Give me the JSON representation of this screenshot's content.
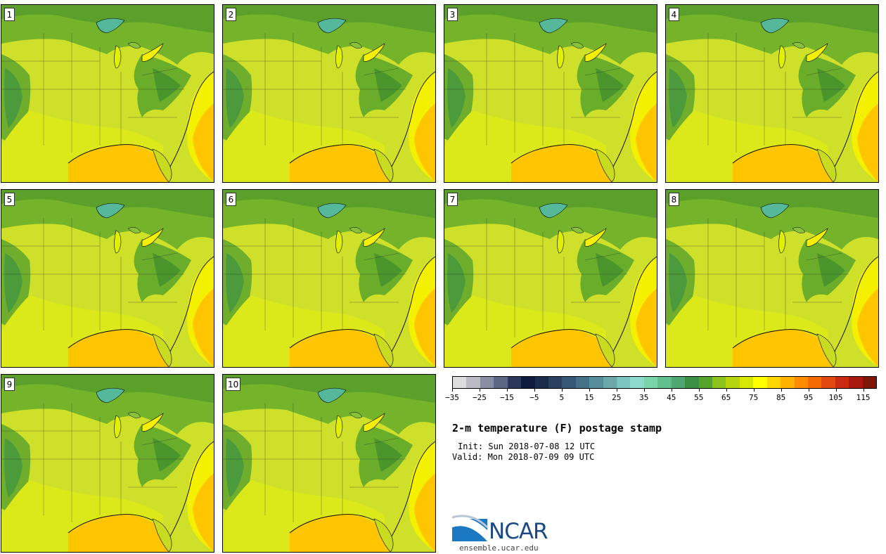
{
  "panels": [
    {
      "label": "1"
    },
    {
      "label": "2"
    },
    {
      "label": "3"
    },
    {
      "label": "4"
    },
    {
      "label": "5"
    },
    {
      "label": "6"
    },
    {
      "label": "7"
    },
    {
      "label": "8"
    },
    {
      "label": "9"
    },
    {
      "label": "10"
    }
  ],
  "colorbar": {
    "colors": [
      "#dddddd",
      "#bbbbc3",
      "#8a8ea4",
      "#5b6784",
      "#2c3759",
      "#0f1b3c",
      "#1b2b4a",
      "#2a4160",
      "#365877",
      "#447188",
      "#558d9a",
      "#6aa8ac",
      "#7cc4c0",
      "#8ddbcc",
      "#79d4aa",
      "#62c08d",
      "#4ea770",
      "#3b9045",
      "#55a22c",
      "#8bc21b",
      "#b7d50e",
      "#d7e805",
      "#ffff00",
      "#ffd700",
      "#ffb200",
      "#ff8c00",
      "#f46a00",
      "#e14710",
      "#c92a10",
      "#a8180f",
      "#7f1408"
    ],
    "tick_labels": [
      "−35",
      "−25",
      "−15",
      "−5",
      "5",
      "15",
      "25",
      "35",
      "45",
      "55",
      "65",
      "75",
      "85",
      "95",
      "105",
      "115"
    ]
  },
  "title": "2-m temperature (F) postage stamp",
  "init": "Init: Sun 2018-07-08 12 UTC",
  "valid": "Valid: Mon 2018-07-09 09 UTC",
  "logo": {
    "text": "NCAR",
    "site": "ensemble.ucar.edu",
    "brand_color": "#1d4a84"
  }
}
